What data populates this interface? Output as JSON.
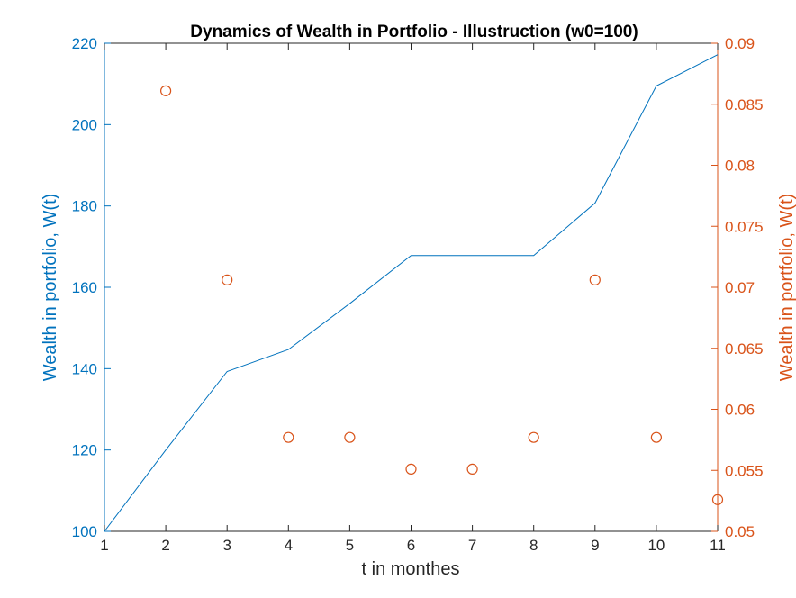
{
  "chart_data": {
    "type": "line",
    "title": "Dynamics of Wealth in Portfolio - Illustruction (w0=100)",
    "xlabel": "t in monthes",
    "ylabel_left": "Wealth in portfolio, W(t)",
    "ylabel_right": "Wealth in portfolio, W(t)",
    "xlim": [
      1,
      11
    ],
    "ylim_left": [
      100,
      220
    ],
    "ylim_right": [
      0.05,
      0.09
    ],
    "x_ticks": [
      "1",
      "2",
      "3",
      "4",
      "5",
      "6",
      "7",
      "8",
      "9",
      "10",
      "11"
    ],
    "y_left_ticks": [
      "100",
      "120",
      "140",
      "160",
      "180",
      "200",
      "220"
    ],
    "y_right_ticks": [
      "0.05",
      "0.055",
      "0.06",
      "0.065",
      "0.07",
      "0.075",
      "0.08",
      "0.085",
      "0.09"
    ],
    "grid": false,
    "colors": {
      "left": "#0072BD",
      "right": "#D95319"
    },
    "series": [
      {
        "axis": "left",
        "style": "line",
        "x": [
          1,
          2,
          3,
          4,
          5,
          6,
          7,
          8,
          9,
          10,
          11
        ],
        "values": [
          100,
          120,
          139.3,
          144.7,
          156,
          167.8,
          167.8,
          167.8,
          180.7,
          209.5,
          217.2
        ]
      },
      {
        "axis": "right",
        "style": "marker",
        "x": [
          2,
          3,
          4,
          5,
          6,
          7,
          8,
          9,
          10,
          11
        ],
        "values": [
          0.0861,
          0.0706,
          0.0577,
          0.0577,
          0.0551,
          0.0551,
          0.0577,
          0.0706,
          0.0577,
          0.0526
        ]
      }
    ]
  }
}
